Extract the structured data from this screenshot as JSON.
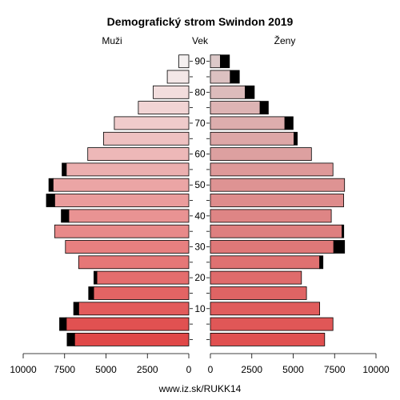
{
  "chart_data": {
    "type": "bar",
    "title": "Demografický strom Swindon 2019",
    "left_label": "Muži",
    "center_label": "Vek",
    "right_label": "Ženy",
    "source": "www.iz.sk/RUKK14",
    "age_ticks": [
      "10",
      "20",
      "30",
      "40",
      "50",
      "60",
      "70",
      "80",
      "90"
    ],
    "x_ticks_left": [
      "10000",
      "7500",
      "5000",
      "2500",
      "0"
    ],
    "x_ticks_right": [
      "0",
      "2500",
      "5000",
      "7500",
      "10000"
    ],
    "xlim": [
      0,
      10000
    ],
    "age_groups": [
      "0-4",
      "5-9",
      "10-14",
      "15-19",
      "20-24",
      "25-29",
      "30-34",
      "35-39",
      "40-44",
      "45-49",
      "50-54",
      "55-59",
      "60-64",
      "65-69",
      "70-74",
      "75-79",
      "80-84",
      "85-89",
      "90+"
    ],
    "series": [
      {
        "name": "Muži",
        "values": [
          6900,
          7400,
          6650,
          5750,
          5550,
          6650,
          7450,
          8100,
          7250,
          8100,
          8200,
          7400,
          6100,
          5150,
          4500,
          3050,
          2150,
          1300,
          600
        ],
        "extra": [
          450,
          400,
          300,
          300,
          180,
          0,
          0,
          0,
          450,
          500,
          250,
          250,
          0,
          0,
          0,
          0,
          0,
          0,
          0
        ]
      },
      {
        "name": "Ženy",
        "values": [
          6900,
          7400,
          6600,
          5800,
          5500,
          6600,
          7450,
          7950,
          7300,
          8050,
          8100,
          7400,
          6100,
          5050,
          4500,
          3000,
          2100,
          1200,
          600
        ],
        "extra": [
          0,
          0,
          0,
          0,
          0,
          200,
          650,
          100,
          0,
          0,
          0,
          0,
          0,
          200,
          500,
          500,
          550,
          550,
          550
        ]
      }
    ],
    "colors": {
      "male_start": "#e04848",
      "male_end": "#f4f0f0",
      "female_start": "#e05050",
      "female_end": "#dcc8c8",
      "extra": "#000000"
    }
  }
}
